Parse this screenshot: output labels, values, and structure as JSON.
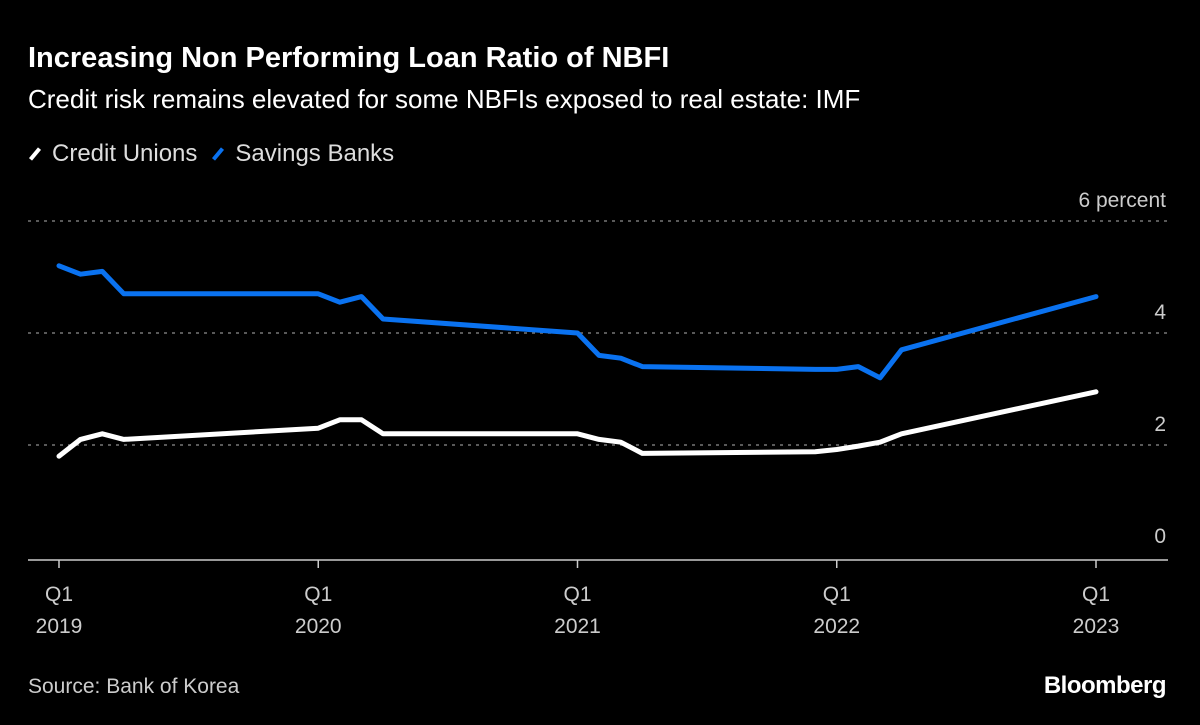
{
  "chart_data": {
    "type": "line",
    "title": "Increasing Non Performing Loan Ratio of NBFI",
    "subtitle": "Credit risk remains elevated for some NBFIs exposed to real estate: IMF",
    "ylabel": "percent",
    "ylim": [
      0,
      6
    ],
    "yticks": [
      {
        "v": 0,
        "label": "0"
      },
      {
        "v": 2,
        "label": "2"
      },
      {
        "v": 4,
        "label": "4"
      },
      {
        "v": 6,
        "label": "6 percent"
      }
    ],
    "xlim": [
      2019,
      2023.27
    ],
    "xticks": [
      {
        "v": 2019,
        "q": "Q1",
        "y": "2019"
      },
      {
        "v": 2020,
        "q": "Q1",
        "y": "2020"
      },
      {
        "v": 2021,
        "q": "Q1",
        "y": "2021"
      },
      {
        "v": 2022,
        "q": "Q1",
        "y": "2022"
      },
      {
        "v": 2023,
        "q": "Q1",
        "y": "2023"
      }
    ],
    "grid": true,
    "legend_placement": "top-left",
    "series": [
      {
        "name": "Credit Unions",
        "color": "#ffffff",
        "x": [
          2019,
          2019.083,
          2019.167,
          2019.25,
          2020,
          2020.083,
          2020.167,
          2020.25,
          2021,
          2021.083,
          2021.167,
          2021.25,
          2021.917,
          2022,
          2022.083,
          2022.167,
          2022.25,
          2023
        ],
        "values": [
          1.8,
          2.1,
          2.2,
          2.1,
          2.3,
          2.45,
          2.45,
          2.2,
          2.2,
          2.1,
          2.05,
          1.85,
          1.88,
          1.92,
          1.98,
          2.05,
          2.2,
          2.95
        ]
      },
      {
        "name": "Savings Banks",
        "color": "#0a72f0",
        "x": [
          2019,
          2019.083,
          2019.167,
          2019.25,
          2020,
          2020.083,
          2020.167,
          2020.25,
          2021,
          2021.083,
          2021.167,
          2021.25,
          2021.917,
          2022,
          2022.083,
          2022.167,
          2022.25,
          2023
        ],
        "values": [
          5.2,
          5.05,
          5.1,
          4.7,
          4.7,
          4.55,
          4.65,
          4.25,
          4.0,
          3.6,
          3.55,
          3.4,
          3.35,
          3.35,
          3.4,
          3.2,
          3.7,
          4.65
        ]
      }
    ]
  },
  "source": "Source: Bank of Korea",
  "brand": "Bloomberg"
}
